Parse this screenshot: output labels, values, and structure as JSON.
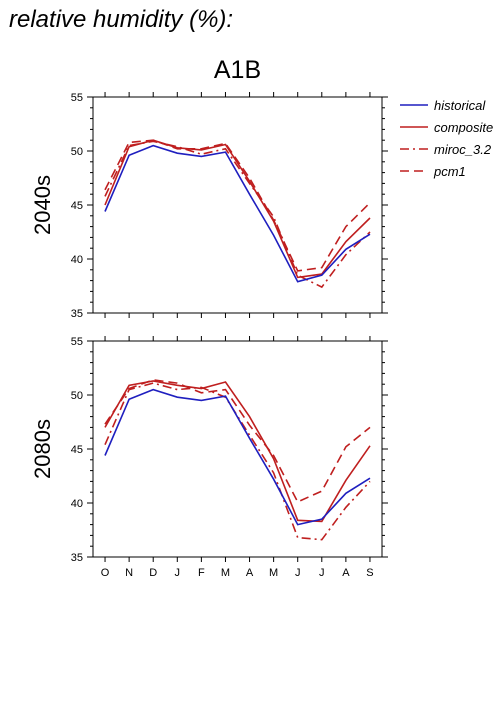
{
  "title": "relative humidity (%):",
  "scenario": "A1B",
  "legend": [
    {
      "label": "historical",
      "color": "#1f1fbf",
      "dash": ""
    },
    {
      "label": "composite",
      "color": "#bf1f1f",
      "dash": ""
    },
    {
      "label": "miroc_3.2",
      "color": "#bf1f1f",
      "dash": "9,4,2,4"
    },
    {
      "label": "pcm1",
      "color": "#bf1f1f",
      "dash": "9,5"
    }
  ],
  "chart_data": [
    {
      "type": "line",
      "row_label": "2040s",
      "categories": [
        "O",
        "N",
        "D",
        "J",
        "F",
        "M",
        "A",
        "M",
        "J",
        "J",
        "A",
        "S"
      ],
      "ylim": [
        35,
        55
      ],
      "yticks": [
        35,
        40,
        45,
        50,
        55
      ],
      "series": [
        {
          "name": "historical",
          "values": [
            44.4,
            49.6,
            50.5,
            49.8,
            49.5,
            49.9,
            46.0,
            42.2,
            37.9,
            38.5,
            40.9,
            42.3
          ]
        },
        {
          "name": "composite",
          "values": [
            45.0,
            50.4,
            51.0,
            50.3,
            50.1,
            50.6,
            47.2,
            43.5,
            38.3,
            38.6,
            41.6,
            43.8
          ]
        },
        {
          "name": "miroc_3.2",
          "values": [
            45.8,
            50.5,
            50.9,
            50.4,
            49.7,
            50.2,
            47.0,
            43.9,
            38.5,
            37.4,
            40.4,
            42.5
          ]
        },
        {
          "name": "pcm1",
          "values": [
            46.4,
            50.8,
            51.0,
            50.2,
            50.2,
            50.7,
            47.5,
            43.6,
            38.9,
            39.2,
            43.0,
            45.2
          ]
        }
      ]
    },
    {
      "type": "line",
      "row_label": "2080s",
      "categories": [
        "O",
        "N",
        "D",
        "J",
        "F",
        "M",
        "A",
        "M",
        "J",
        "J",
        "A",
        "S"
      ],
      "ylim": [
        35,
        55
      ],
      "yticks": [
        35,
        40,
        45,
        50,
        55
      ],
      "series": [
        {
          "name": "historical",
          "values": [
            44.4,
            49.6,
            50.5,
            49.8,
            49.5,
            49.9,
            46.0,
            42.2,
            38.0,
            38.5,
            40.9,
            42.3
          ]
        },
        {
          "name": "composite",
          "values": [
            47.0,
            50.9,
            51.3,
            50.9,
            50.6,
            51.2,
            48.0,
            44.1,
            38.4,
            38.3,
            42.1,
            45.3
          ]
        },
        {
          "name": "miroc_3.2",
          "values": [
            45.4,
            50.5,
            51.1,
            50.5,
            50.7,
            49.8,
            46.3,
            42.8,
            36.8,
            36.6,
            39.6,
            42.0
          ]
        },
        {
          "name": "pcm1",
          "values": [
            47.3,
            50.6,
            51.4,
            51.1,
            50.2,
            50.5,
            47.2,
            44.4,
            40.1,
            41.1,
            45.2,
            47.0
          ]
        }
      ]
    }
  ]
}
